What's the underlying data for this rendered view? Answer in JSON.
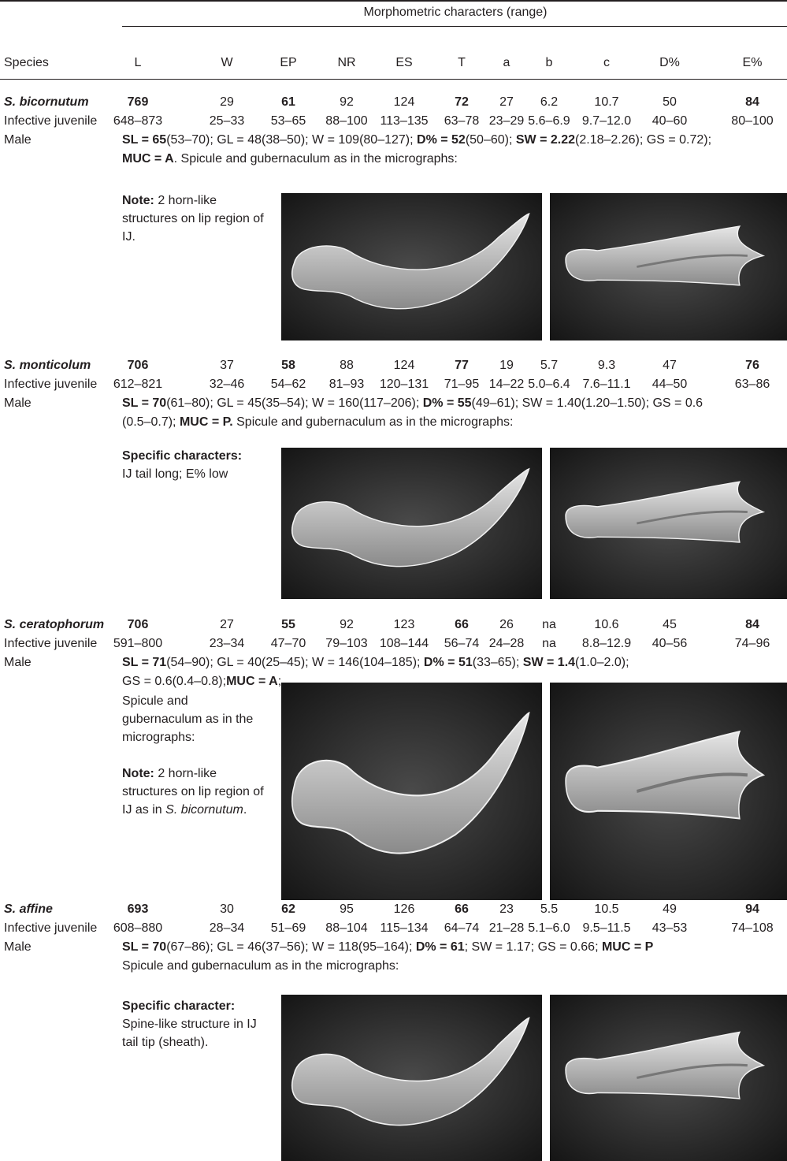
{
  "header": {
    "group_label": "Morphometric characters (range)",
    "columns": [
      "Species",
      "L",
      "W",
      "EP",
      "NR",
      "ES",
      "T",
      "a",
      "b",
      "c",
      "D%",
      "E%"
    ]
  },
  "species": [
    {
      "name": "S. bicornutum",
      "values": [
        769,
        29,
        61,
        92,
        124,
        72,
        27,
        6.2,
        10.7,
        50,
        84
      ],
      "range_label": "Infective juvenile",
      "ranges": [
        "648–873",
        "25–33",
        "53–65",
        "88–100",
        "113–135",
        "63–78",
        "23–29",
        "5.6–6.9",
        "9.7–12.0",
        "40–60",
        "80–100"
      ],
      "male_label": "Male",
      "male": [
        [
          {
            "text": "SL = 65",
            "style": "b"
          },
          {
            "text": "(53–70); GL = 48(38–50); W = 109(80–127); "
          },
          {
            "text": "D% = 52",
            "style": "b"
          },
          {
            "text": "(50–60); "
          },
          {
            "text": "SW = 2.22",
            "style": "b"
          },
          {
            "text": "(2.18–2.26); GS = 0.72);"
          }
        ],
        [
          {
            "text": "MUC = A",
            "style": "b"
          },
          {
            "text": ". Spicule and gubernaculum as in the micrographs:"
          }
        ]
      ],
      "note": [
        [
          {
            "text": "Note:",
            "style": "b"
          },
          {
            "text": " 2 horn-like structures on lip region of IJ."
          }
        ]
      ]
    },
    {
      "name": "S. monticolum",
      "values": [
        706,
        37,
        58,
        88,
        124,
        77,
        19,
        5.7,
        9.3,
        47,
        76
      ],
      "range_label": "Infective juvenile",
      "ranges": [
        "612–821",
        "32–46",
        "54–62",
        "81–93",
        "120–131",
        "71–95",
        "14–22",
        "5.0–6.4",
        "7.6–11.1",
        "44–50",
        "63–86"
      ],
      "male_label": "Male",
      "male": [
        [
          {
            "text": "SL = 70",
            "style": "b"
          },
          {
            "text": "(61–80); GL = 45(35–54); W = 160(117–206); "
          },
          {
            "text": "D% = 55",
            "style": "b"
          },
          {
            "text": "(49–61); SW = 1.40(1.20–1.50); GS = 0.6"
          }
        ],
        [
          {
            "text": "(0.5–0.7); "
          },
          {
            "text": "MUC = P.",
            "style": "b"
          },
          {
            "text": " Spicule and gubernaculum as in the micrographs:"
          }
        ]
      ],
      "note": [
        [
          {
            "text": "Specific characters:",
            "style": "b"
          }
        ],
        [
          {
            "text": "IJ tail long; E% low"
          }
        ]
      ]
    },
    {
      "name": "S. ceratophorum",
      "values": [
        706,
        27,
        55,
        92,
        123,
        66,
        26,
        "na",
        10.6,
        45,
        84
      ],
      "range_label": "Infective juvenile",
      "ranges": [
        "591–800",
        "23–34",
        "47–70",
        "79–103",
        "108–144",
        "56–74",
        "24–28",
        "na",
        "8.8–12.9",
        "40–56",
        "74–96"
      ],
      "male_label": "Male",
      "male": [
        [
          {
            "text": "SL = 71",
            "style": "b"
          },
          {
            "text": "(54–90); GL = 40(25–45); W = 146(104–185); "
          },
          {
            "text": "D% = 51",
            "style": "b"
          },
          {
            "text": "(33–65); "
          },
          {
            "text": "SW = 1.4",
            "style": "b"
          },
          {
            "text": "(1.0–2.0);"
          }
        ],
        [
          {
            "text": "GS = 0.6(0.4–0.8);"
          },
          {
            "text": "MUC = A",
            "style": "b"
          },
          {
            "text": ";"
          }
        ]
      ],
      "note": [
        [
          {
            "text": "Spicule and gubernaculum as in the micrographs:"
          }
        ],
        [
          {
            "text": "Note:",
            "style": "b"
          },
          {
            "text": " 2 horn-like structures on lip region of IJ as in "
          },
          {
            "text": "S. bicornutum",
            "style": "i"
          },
          {
            "text": "."
          }
        ]
      ]
    },
    {
      "name": "S. affine",
      "values": [
        693,
        30,
        62,
        95,
        126,
        66,
        23,
        5.5,
        10.5,
        49,
        94
      ],
      "range_label": "Infective juvenile",
      "ranges": [
        "608–880",
        "28–34",
        "51–69",
        "88–104",
        "115–134",
        "64–74",
        "21–28",
        "5.1–6.0",
        "9.5–11.5",
        "43–53",
        "74–108"
      ],
      "male_label": "Male",
      "male": [
        [
          {
            "text": "SL = 70",
            "style": "b"
          },
          {
            "text": "(67–86); GL = 46(37–56); W = 118(95–164); "
          },
          {
            "text": "D% = 61",
            "style": "b"
          },
          {
            "text": "; SW = 1.17; GS = 0.66; "
          },
          {
            "text": "MUC = P",
            "style": "b"
          }
        ],
        [
          {
            "text": "Spicule and gubernaculum as in the micrographs:"
          }
        ]
      ],
      "note": [
        [
          {
            "text": "Specific character:",
            "style": "b"
          }
        ],
        [
          {
            "text": "Spine-like structure in IJ tail tip (sheath)."
          }
        ]
      ]
    }
  ]
}
